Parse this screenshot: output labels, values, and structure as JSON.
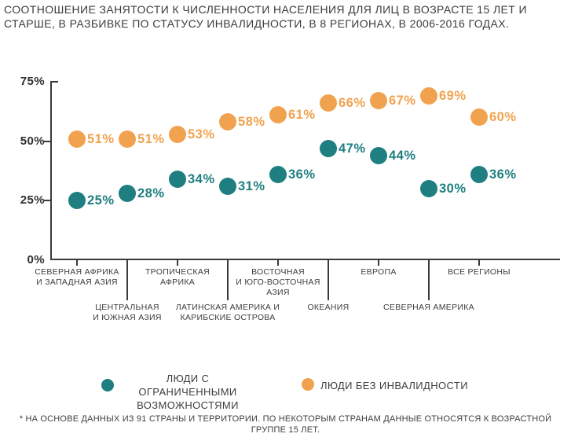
{
  "title": {
    "lines": [
      "СООТНОШЕНИЕ ЗАНЯТОСТИ К ЧИСЛЕННОСТИ НАСЕЛЕНИЯ ДЛЯ ЛИЦ В ВОЗРАСТЕ 15 ЛЕТ И",
      "СТАРШЕ, В РАЗБИВКЕ ПО СТАТУСУ ИНВАЛИДНОСТИ, В 8 РЕГИОНАХ, В 2006-2016 ГОДАХ."
    ]
  },
  "colors": {
    "disabled": "#1e7e80",
    "nondisabled": "#f1a24e",
    "text": "#3d3d3d",
    "axis": "#3a3a3a"
  },
  "chart_data": {
    "type": "scatter",
    "title": "СООТНОШЕНИЕ ЗАНЯТОСТИ К ЧИСЛЕННОСТИ НАСЕЛЕНИЯ ДЛЯ ЛИЦ В ВОЗРАСТЕ 15 ЛЕТ И СТАРШЕ, В РАЗБИВКЕ ПО СТАТУСУ ИНВАЛИДНОСТИ, В 8 РЕГИОНАХ, В 2006-2016 ГОДАХ.",
    "categories": [
      {
        "label": "СЕВЕРНАЯ АФРИКА\nИ ЗАПАДНАЯ АЗИЯ",
        "row": 1
      },
      {
        "label": "ЦЕНТРАЛЬНАЯ\nИ ЮЖНАЯ АЗИЯ",
        "row": 2
      },
      {
        "label": "ТРОПИЧЕСКАЯ\nАФРИКА",
        "row": 1
      },
      {
        "label": "ЛАТИНСКАЯ АМЕРИКА И\nКАРИБСКИЕ ОСТРОВА",
        "row": 2
      },
      {
        "label": "ВОСТОЧНАЯ\nИ ЮГО-ВОСТОЧНАЯ\nАЗИЯ",
        "row": 1
      },
      {
        "label": "ОКЕАНИЯ",
        "row": 2
      },
      {
        "label": "ЕВРОПА",
        "row": 1
      },
      {
        "label": "СЕВЕРНАЯ АМЕРИКА",
        "row": 2
      },
      {
        "label": "ВСЕ РЕГИОНЫ",
        "row": 1
      }
    ],
    "series": [
      {
        "name": "ЛЮДИ С ОГРАНИЧЕННЫМИ ВОЗМОЖНОСТЯМИ",
        "key": "disabled",
        "color": "#1e7e80",
        "values": [
          25,
          28,
          34,
          31,
          36,
          47,
          44,
          30,
          36
        ]
      },
      {
        "name": "ЛЮДИ БЕЗ ИНВАЛИДНОСТИ",
        "key": "nondisabled",
        "color": "#f1a24e",
        "values": [
          51,
          51,
          53,
          58,
          61,
          66,
          67,
          69,
          60
        ]
      }
    ],
    "ylim": [
      0,
      75
    ],
    "y_ticks": [
      75,
      50,
      25,
      0
    ],
    "y_tick_labels": [
      "75%",
      "50%",
      "25%",
      "0%"
    ],
    "value_label_suffix": "%",
    "grid": false,
    "legend_position": "bottom"
  },
  "legend": {
    "items": [
      {
        "label": "ЛЮДИ С ОГРАНИЧЕННЫМИ\nВОЗМОЖНОСТЯМИ"
      },
      {
        "label": "ЛЮДИ БЕЗ ИНВАЛИДНОСТИ"
      }
    ]
  },
  "footnote": {
    "lines": [
      "* НА ОСНОВЕ ДАННЫХ ИЗ 91 СТРАНЫ И ТЕРРИТОРИИ. ПО НЕКОТОРЫМ СТРАНАМ ДАННЫЕ ОТНОСЯТСЯ К ВОЗРАСТНОЙ",
      "ГРУППЕ 15 ЛЕТ."
    ]
  }
}
